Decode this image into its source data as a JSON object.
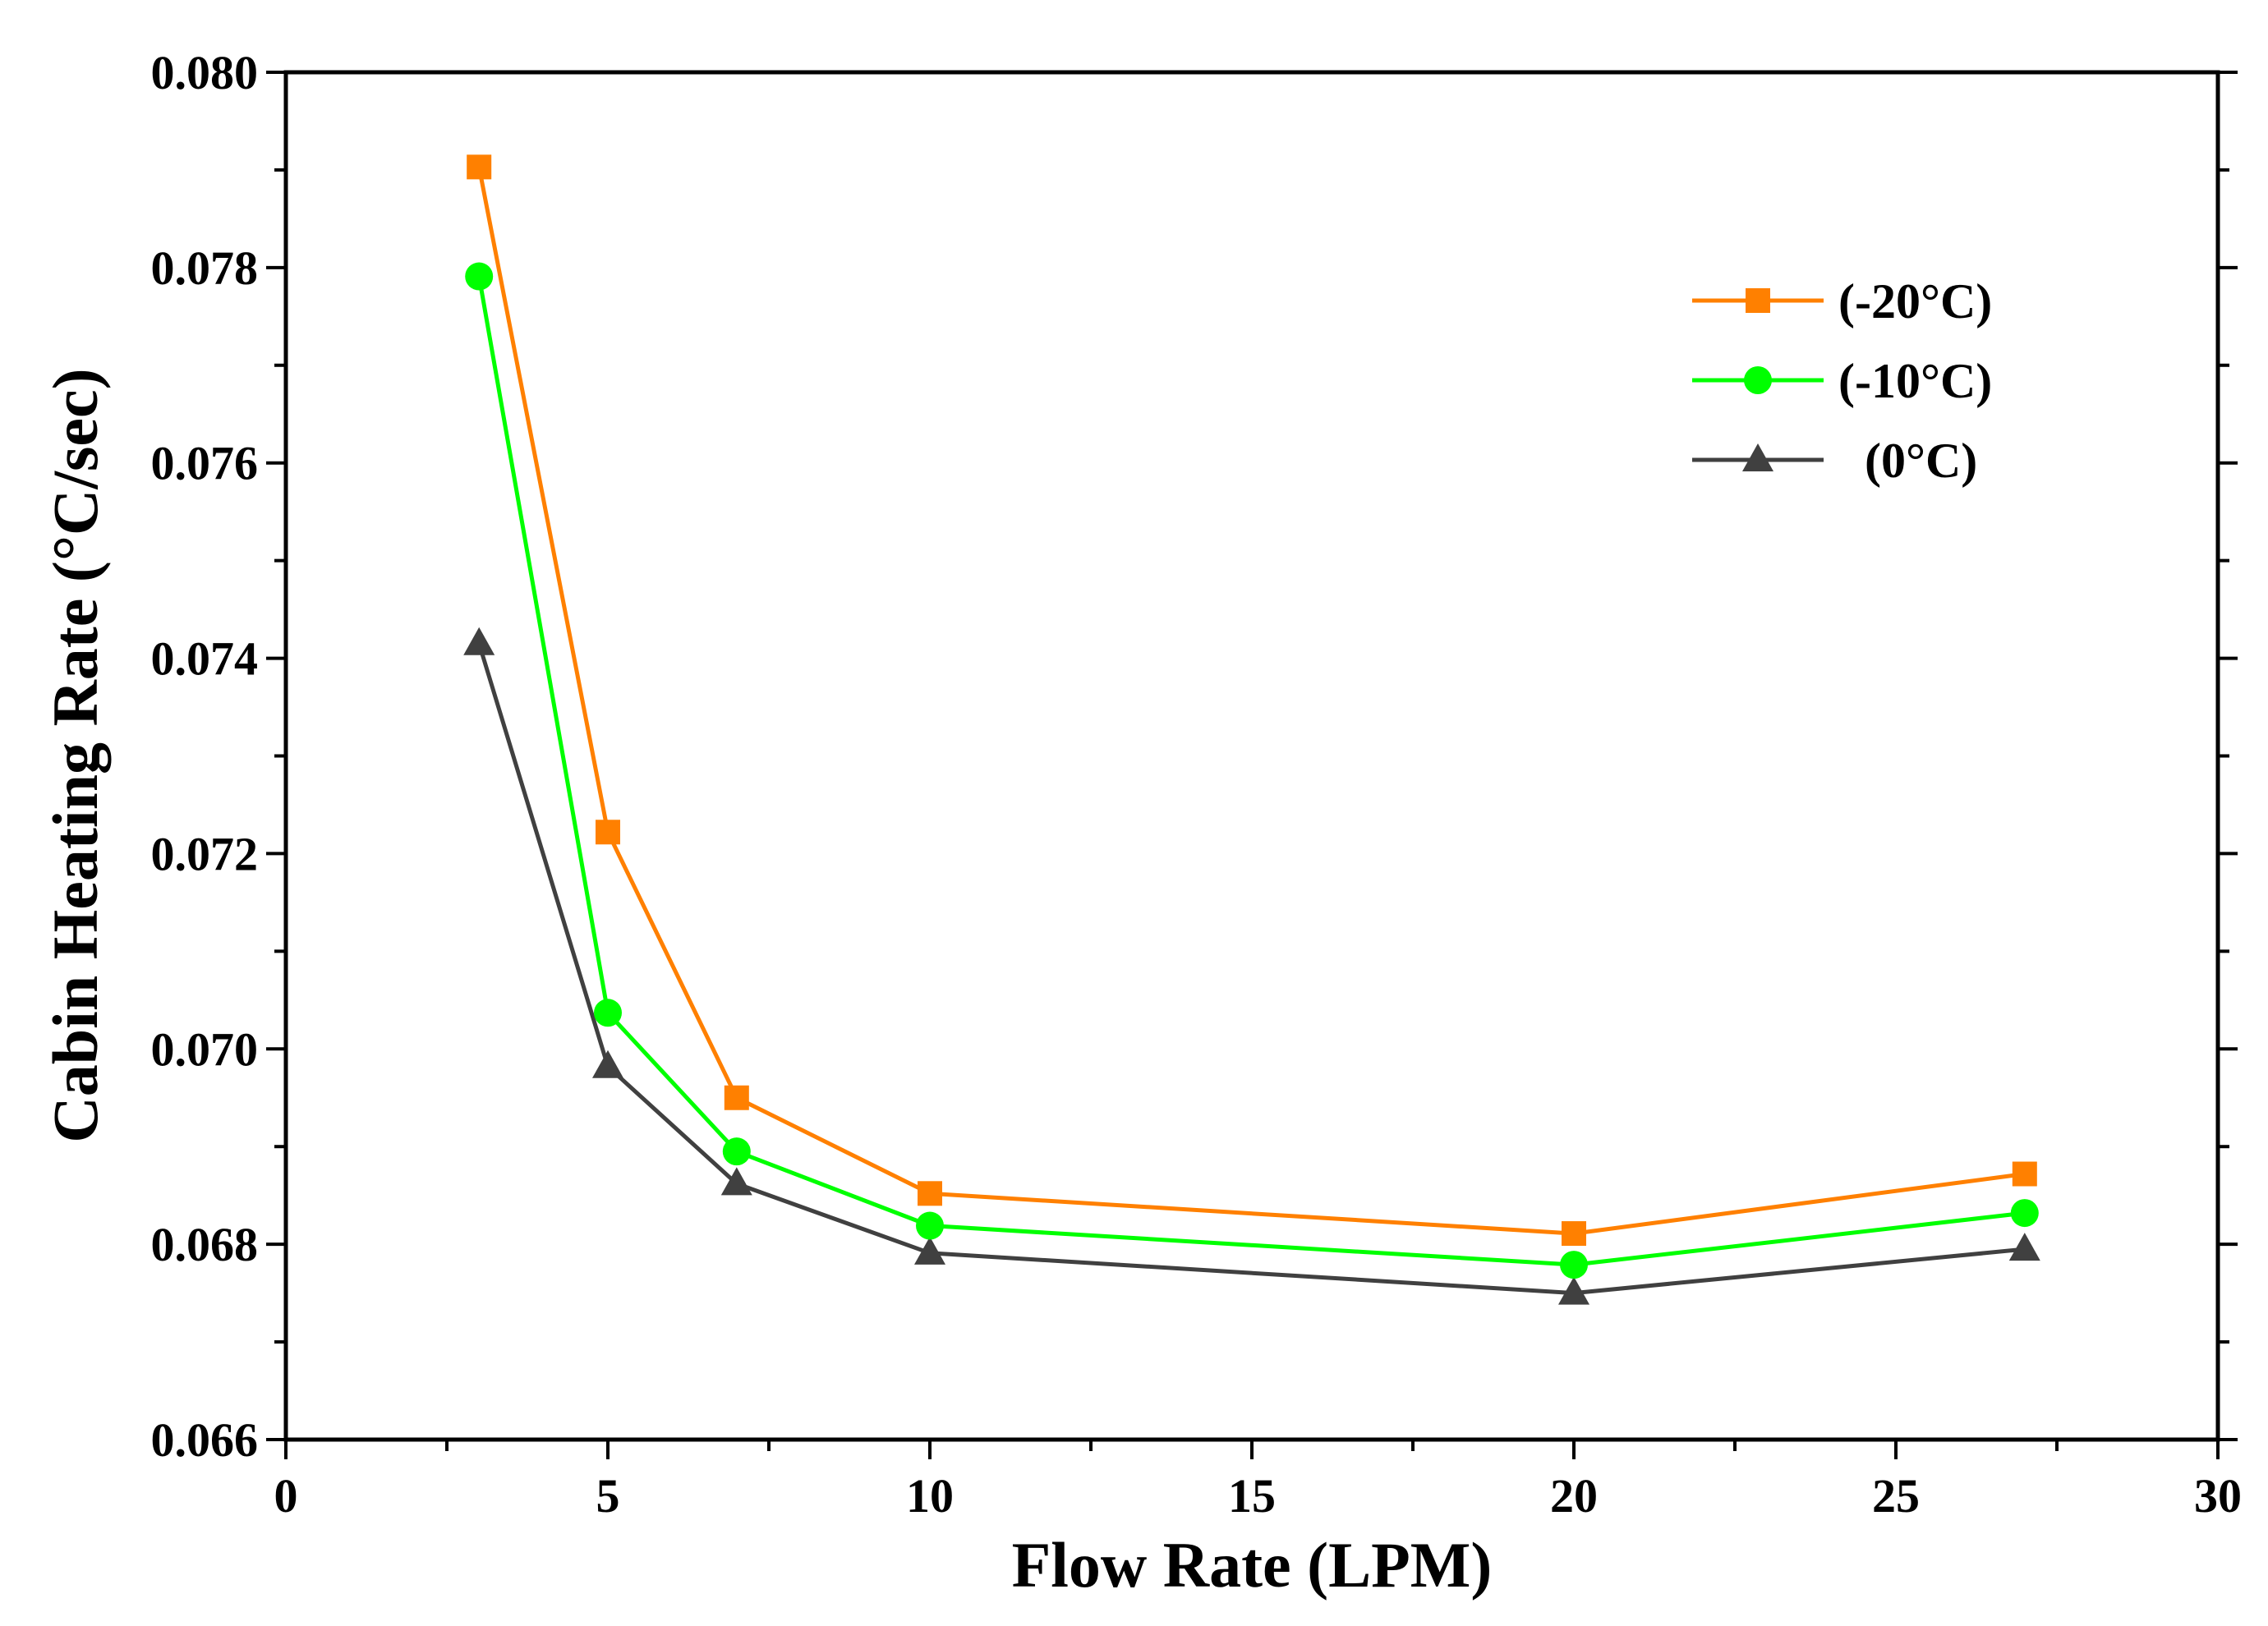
{
  "chart_data": {
    "type": "line",
    "title": "",
    "xlabel": "Flow Rate (LPM)",
    "ylabel": "Cabin Heating Rate (°C/sec)",
    "xlim": [
      0,
      30
    ],
    "ylim": [
      0.066,
      0.08
    ],
    "x_ticks": [
      0,
      5,
      10,
      15,
      20,
      25,
      30
    ],
    "x_tick_labels": [
      "0",
      "5",
      "10",
      "15",
      "20",
      "25",
      "30"
    ],
    "y_ticks": [
      0.066,
      0.068,
      0.07,
      0.072,
      0.074,
      0.076,
      0.078,
      0.08
    ],
    "y_tick_labels": [
      "0.066",
      "0.068",
      "0.070",
      "0.072",
      "0.074",
      "0.076",
      "0.078",
      "0.080"
    ],
    "grid": false,
    "legend_position": "top-right",
    "x": [
      3,
      5,
      7,
      10,
      20,
      27
    ],
    "series": [
      {
        "name": "(-20°C)",
        "color": "#FF8000",
        "marker": "square",
        "values": [
          0.07903,
          0.07222,
          0.0695,
          0.06852,
          0.06811,
          0.06872
        ]
      },
      {
        "name": "(-10°C)",
        "color": "#00FF00",
        "marker": "circle",
        "values": [
          0.07791,
          0.07037,
          0.06895,
          0.06819,
          0.06779,
          0.06832
        ]
      },
      {
        "name": "(0°C)",
        "color": "#404040",
        "marker": "triangle",
        "values": [
          0.07415,
          0.06982,
          0.06862,
          0.06791,
          0.0675,
          0.06795
        ]
      }
    ]
  }
}
